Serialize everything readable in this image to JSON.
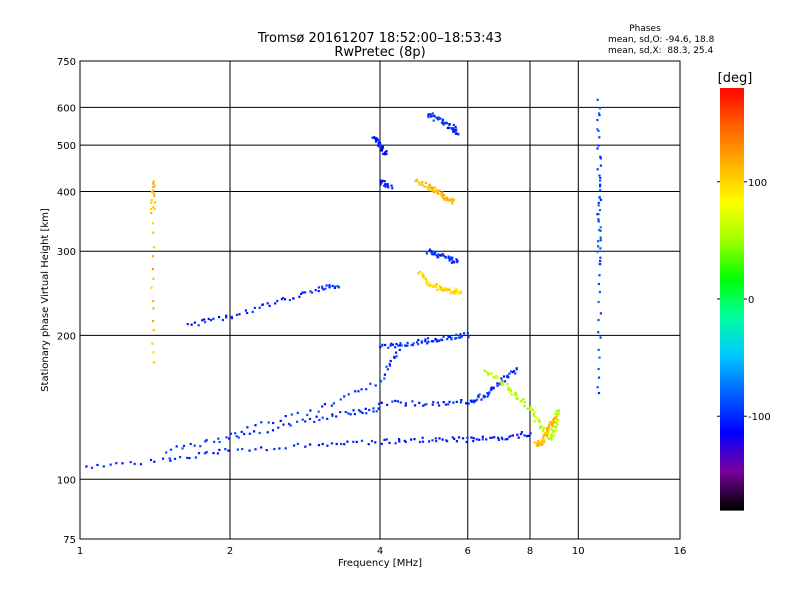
{
  "title_line1": "Tromsø 20161207 18:52:00–18:53:43",
  "title_line2": "RwPretec (8p)",
  "stats": {
    "heading": "Phases",
    "line_o": "mean, sd,O: -94.6, 18.8",
    "line_x": "mean, sd,X:  88.3, 25.4"
  },
  "colorbar": {
    "label": "[deg]",
    "ticks": [
      {
        "value": 100,
        "label": "100"
      },
      {
        "value": 0,
        "label": "0"
      },
      {
        "value": -100,
        "label": "-100"
      }
    ],
    "range": [
      -180,
      180
    ],
    "colors": [
      "#000000",
      "#7a00a0",
      "#0000ff",
      "#0060ff",
      "#00c8ff",
      "#00ffa0",
      "#00ff00",
      "#a0ff00",
      "#ffff00",
      "#ffb000",
      "#ff6000",
      "#ff0000"
    ]
  },
  "chart_data": {
    "type": "scatter",
    "xlabel": "Frequency [MHz]",
    "ylabel": "Stationary phase Virtual Height [km]",
    "x_scale": "log",
    "y_scale": "log",
    "xlim": [
      1,
      16
    ],
    "ylim": [
      75,
      750
    ],
    "x_ticks": [
      {
        "value": 1,
        "label": "1"
      },
      {
        "value": 2,
        "label": "2"
      },
      {
        "value": 4,
        "label": "4"
      },
      {
        "value": 6,
        "label": "6"
      },
      {
        "value": 8,
        "label": "8"
      },
      {
        "value": 10,
        "label": "10"
      },
      {
        "value": 16,
        "label": "16"
      }
    ],
    "y_ticks": [
      {
        "value": 75,
        "label": "75"
      },
      {
        "value": 100,
        "label": "100"
      },
      {
        "value": 200,
        "label": "200"
      },
      {
        "value": 300,
        "label": "300"
      },
      {
        "value": 400,
        "label": "400"
      },
      {
        "value": 500,
        "label": "500"
      },
      {
        "value": 600,
        "label": "600"
      },
      {
        "value": 750,
        "label": "750"
      }
    ],
    "grid": true,
    "traces": [
      {
        "x": [
          1.0,
          1.5,
          2.0,
          3.0,
          4.0,
          5.0,
          6.0,
          7.0,
          8.0
        ],
        "y": [
          106,
          110,
          115,
          118,
          120,
          121,
          121,
          122,
          125
        ],
        "phase": -105
      },
      {
        "x": [
          1.5,
          2.0,
          2.8,
          3.5,
          4.0
        ],
        "y": [
          115,
          122,
          132,
          138,
          140
        ],
        "phase": -100
      },
      {
        "x": [
          2.0,
          3.0,
          4.0,
          4.4
        ],
        "y": [
          125,
          140,
          160,
          190
        ],
        "phase": -98
      },
      {
        "x": [
          4.0,
          5.0,
          6.0,
          6.5,
          7.0,
          7.5
        ],
        "y": [
          145,
          144,
          145,
          150,
          160,
          170
        ],
        "phase": -100
      },
      {
        "x": [
          4.0,
          4.5,
          5.0,
          5.5,
          6.0
        ],
        "y": [
          190,
          192,
          195,
          198,
          200
        ],
        "phase": -98
      },
      {
        "x": [
          4.8,
          5.0,
          5.3,
          5.6,
          5.8
        ],
        "y": [
          270,
          258,
          250,
          247,
          248
        ],
        "phase": 100
      },
      {
        "x": [
          5.0,
          5.2,
          5.5,
          5.7
        ],
        "y": [
          300,
          295,
          290,
          285
        ],
        "phase": -100
      },
      {
        "x": [
          4.7,
          5.0,
          5.2,
          5.4,
          5.6
        ],
        "y": [
          420,
          410,
          400,
          390,
          380
        ],
        "phase": 110
      },
      {
        "x": [
          5.0,
          5.3,
          5.6,
          5.7
        ],
        "y": [
          580,
          560,
          545,
          530
        ],
        "phase": -100
      },
      {
        "x": [
          1.65,
          2.0,
          2.5,
          3.0,
          3.3
        ],
        "y": [
          210,
          220,
          235,
          250,
          255
        ],
        "phase": -100
      },
      {
        "x": [
          3.9,
          4.0,
          4.1
        ],
        "y": [
          520,
          500,
          480
        ],
        "phase": -105
      },
      {
        "x": [
          4.0,
          4.2
        ],
        "y": [
          420,
          410
        ],
        "phase": -105
      },
      {
        "x": [
          6.5,
          7.0,
          7.5,
          8.0,
          8.5,
          8.8,
          9.0,
          9.1
        ],
        "y": [
          170,
          160,
          150,
          140,
          128,
          122,
          130,
          140
        ],
        "phase": 60
      },
      {
        "x": [
          8.2,
          8.4,
          8.6,
          8.8,
          9.0
        ],
        "y": [
          120,
          118,
          125,
          130,
          135
        ],
        "phase": 110
      },
      {
        "x": [
          11.0,
          11.0,
          11.0,
          11.0,
          11.0
        ],
        "y": [
          620,
          430,
          350,
          280,
          150
        ],
        "phase": -90
      },
      {
        "x": [
          1.4,
          1.4,
          1.4
        ],
        "y": [
          420,
          360,
          175
        ],
        "phase": 110
      }
    ]
  }
}
